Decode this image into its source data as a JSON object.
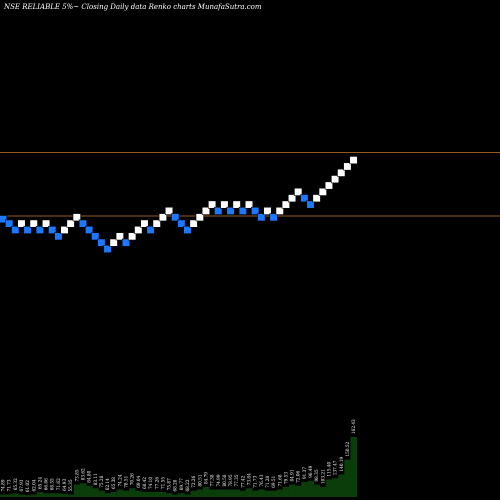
{
  "header": {
    "title": "NSE RELIABLE 5%~ Closing Daily data Renko charts MunafaSutra.com"
  },
  "colors": {
    "background": "#000000",
    "up_brick": "#ffffff",
    "down_brick": "#1e78ff",
    "brick_border": "#000000",
    "reference_line": "#c87828",
    "volume_fill": "#0a3d0a",
    "volume_label": "#ffffff"
  },
  "chart_data": [
    {
      "type": "renko",
      "brick_size_label": "5%",
      "reference_levels": [
        1.0,
        0.0
      ],
      "ylim": [
        -1.2,
        6.2
      ],
      "bricks": [
        {
          "dir": "down",
          "level": -0.05
        },
        {
          "dir": "down",
          "level": -0.12
        },
        {
          "dir": "down",
          "level": -0.22
        },
        {
          "dir": "up",
          "level": -0.12
        },
        {
          "dir": "down",
          "level": -0.22
        },
        {
          "dir": "up",
          "level": -0.12
        },
        {
          "dir": "down",
          "level": -0.22
        },
        {
          "dir": "up",
          "level": -0.12
        },
        {
          "dir": "down",
          "level": -0.22
        },
        {
          "dir": "down",
          "level": -0.32
        },
        {
          "dir": "up",
          "level": -0.22
        },
        {
          "dir": "up",
          "level": -0.12
        },
        {
          "dir": "up",
          "level": -0.02
        },
        {
          "dir": "down",
          "level": -0.12
        },
        {
          "dir": "down",
          "level": -0.22
        },
        {
          "dir": "down",
          "level": -0.32
        },
        {
          "dir": "down",
          "level": -0.42
        },
        {
          "dir": "down",
          "level": -0.52
        },
        {
          "dir": "up",
          "level": -0.42
        },
        {
          "dir": "up",
          "level": -0.32
        },
        {
          "dir": "down",
          "level": -0.42
        },
        {
          "dir": "up",
          "level": -0.32
        },
        {
          "dir": "up",
          "level": -0.22
        },
        {
          "dir": "up",
          "level": -0.12
        },
        {
          "dir": "down",
          "level": -0.22
        },
        {
          "dir": "up",
          "level": -0.12
        },
        {
          "dir": "up",
          "level": -0.02
        },
        {
          "dir": "up",
          "level": 0.08
        },
        {
          "dir": "down",
          "level": -0.02
        },
        {
          "dir": "down",
          "level": -0.12
        },
        {
          "dir": "down",
          "level": -0.22
        },
        {
          "dir": "up",
          "level": -0.12
        },
        {
          "dir": "up",
          "level": -0.02
        },
        {
          "dir": "up",
          "level": 0.08
        },
        {
          "dir": "up",
          "level": 0.18
        },
        {
          "dir": "down",
          "level": 0.08
        },
        {
          "dir": "up",
          "level": 0.18
        },
        {
          "dir": "down",
          "level": 0.08
        },
        {
          "dir": "up",
          "level": 0.18
        },
        {
          "dir": "down",
          "level": 0.08
        },
        {
          "dir": "up",
          "level": 0.18
        },
        {
          "dir": "down",
          "level": 0.08
        },
        {
          "dir": "down",
          "level": -0.02
        },
        {
          "dir": "up",
          "level": 0.08
        },
        {
          "dir": "down",
          "level": -0.02
        },
        {
          "dir": "up",
          "level": 0.08
        },
        {
          "dir": "up",
          "level": 0.18
        },
        {
          "dir": "up",
          "level": 0.28
        },
        {
          "dir": "up",
          "level": 0.38
        },
        {
          "dir": "down",
          "level": 0.28
        },
        {
          "dir": "down",
          "level": 0.18
        },
        {
          "dir": "up",
          "level": 0.28
        },
        {
          "dir": "up",
          "level": 0.38
        },
        {
          "dir": "up",
          "level": 0.48
        },
        {
          "dir": "up",
          "level": 0.58
        },
        {
          "dir": "up",
          "level": 0.68
        },
        {
          "dir": "up",
          "level": 0.78
        },
        {
          "dir": "up",
          "level": 0.88
        }
      ]
    },
    {
      "type": "bar",
      "name": "volume",
      "ylim": [
        0,
        120
      ],
      "values": [
        2,
        2,
        3,
        2,
        1.5,
        2,
        4,
        3,
        3,
        3,
        2.5,
        2,
        10,
        11,
        9,
        7,
        5,
        3,
        4,
        6,
        5,
        7,
        5,
        4,
        4,
        4,
        4,
        3,
        2,
        3,
        2,
        5,
        6,
        8,
        6,
        6,
        6,
        6,
        6,
        5,
        7,
        5,
        6,
        5,
        5,
        6,
        8,
        10,
        9,
        12,
        13,
        10,
        8,
        14,
        15,
        18,
        30,
        48
      ],
      "labels": [
        "74.89",
        "71.73",
        "65.32",
        "67.93",
        "61.02",
        "62.04",
        "65.24",
        "66.86",
        "68.55",
        "71.62",
        "64.93",
        "55.35",
        "73.85",
        "83.62",
        "84.80",
        "83.11",
        "75.28",
        "62.14",
        "65.38",
        "74.24",
        "78.51",
        "70.26",
        "69.04",
        "68.42",
        "74.10",
        "77.26",
        "71.55",
        "75.87",
        "68.28",
        "69.77",
        "68.22",
        "72.26",
        "80.51",
        "84.79",
        "77.38",
        "74.99",
        "80.58",
        "78.95",
        "77.35",
        "77.42",
        "73.84",
        "71.73",
        "76.43",
        "71.28",
        "69.51",
        "71.68",
        "79.53",
        "84.91",
        "72.06",
        "91.37",
        "96.49",
        "98.35",
        "103.21",
        "115.40",
        "137.47",
        "140.19",
        "150.52",
        "162.43"
      ]
    }
  ]
}
